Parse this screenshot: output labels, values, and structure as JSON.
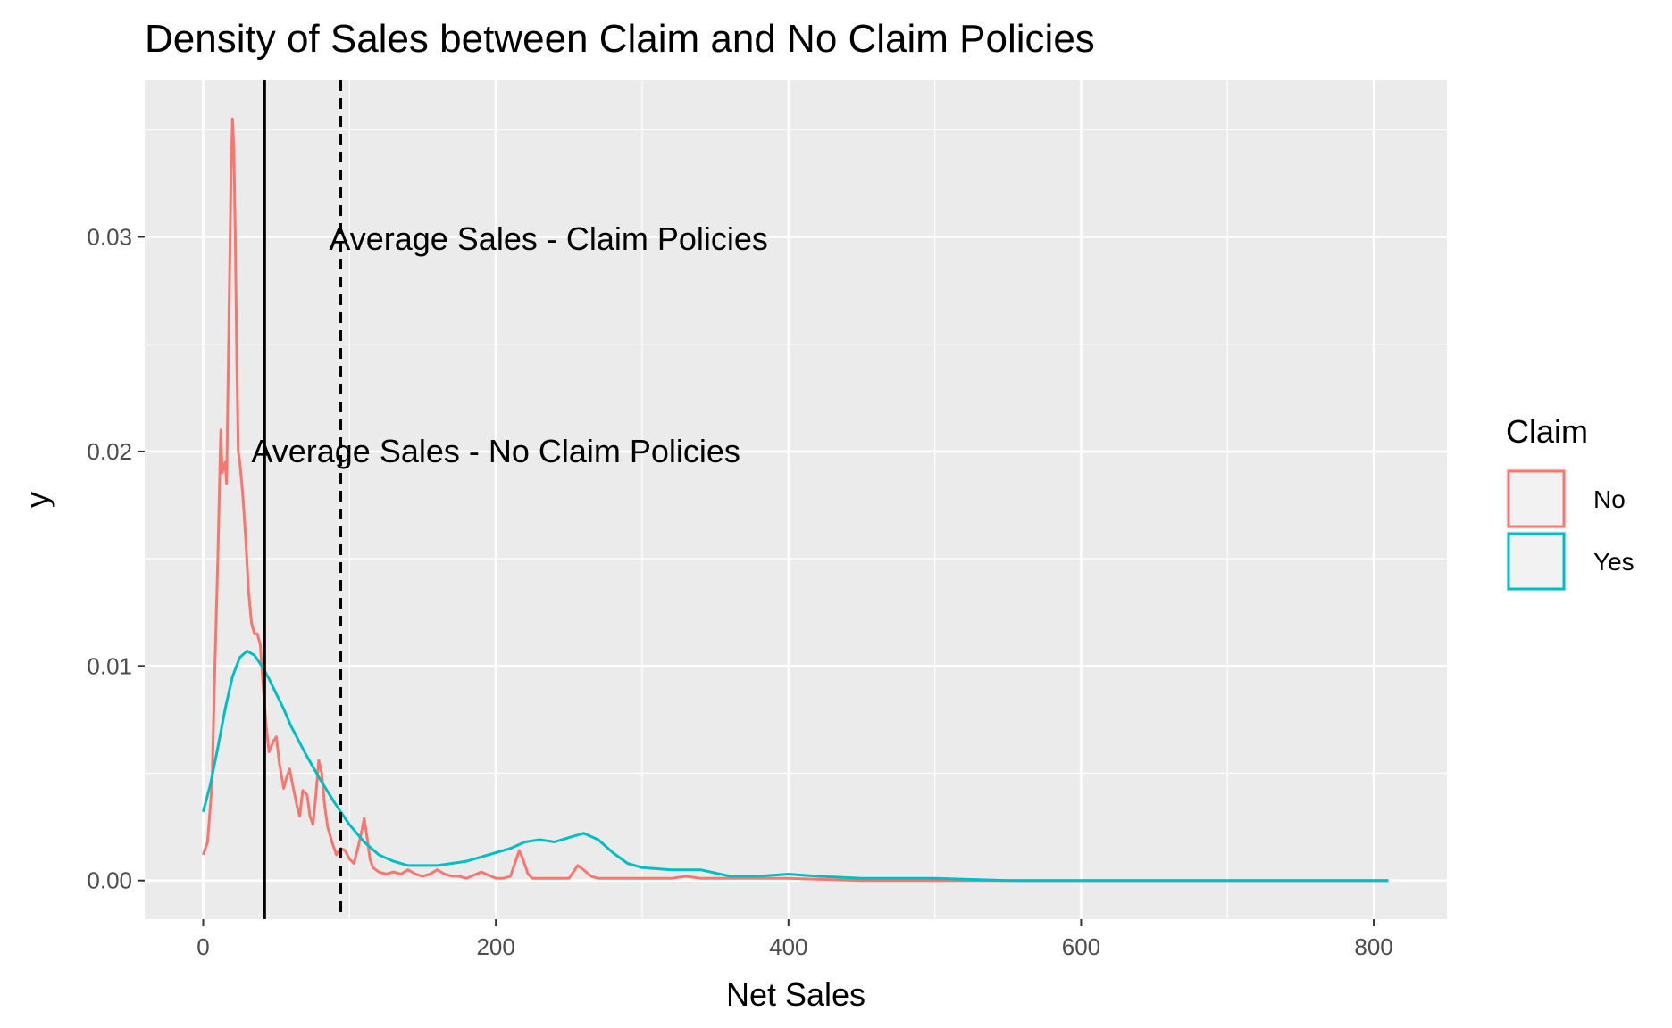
{
  "chart_data": {
    "type": "line",
    "title": "Density of Sales between Claim and No Claim Policies",
    "xlabel": "Net Sales",
    "ylabel": "y",
    "xlim": [
      -40,
      850
    ],
    "ylim": [
      -0.0018,
      0.0373
    ],
    "x_ticks": [
      0,
      200,
      400,
      600,
      800
    ],
    "x_tick_labels": [
      "0",
      "200",
      "400",
      "600",
      "800"
    ],
    "y_ticks": [
      0,
      0.01,
      0.02,
      0.03
    ],
    "y_tick_labels": [
      "0.00",
      "0.01",
      "0.02",
      "0.03"
    ],
    "grid": true,
    "legend": {
      "title": "Claim",
      "position": "right",
      "entries": [
        {
          "label": "No",
          "color": "#F8766D"
        },
        {
          "label": "Yes",
          "color": "#00BFC4"
        }
      ]
    },
    "vlines": [
      {
        "x": 42,
        "style": "solid",
        "color": "#000000"
      },
      {
        "x": 94,
        "style": "dashed",
        "color": "#000000"
      }
    ],
    "annotations": [
      {
        "text": "Average Sales - Claim Policies",
        "x": 236,
        "y": 0.0299
      },
      {
        "text": "Average Sales - No Claim Policies",
        "x": 200,
        "y": 0.02
      }
    ],
    "series": [
      {
        "name": "No",
        "color": "#F8766D",
        "x": [
          0,
          3,
          6,
          8,
          10,
          12,
          13,
          15,
          16,
          18,
          19,
          20,
          21,
          22,
          23,
          24,
          25,
          27,
          29,
          31,
          33,
          35,
          37,
          39,
          41,
          43,
          45,
          48,
          50,
          52,
          55,
          57,
          59,
          61,
          64,
          66,
          68,
          71,
          73,
          75,
          77,
          79,
          81,
          83,
          85,
          88,
          91,
          94,
          97,
          100,
          103,
          106,
          108,
          110,
          112,
          114,
          116,
          120,
          125,
          130,
          135,
          140,
          145,
          150,
          155,
          160,
          165,
          170,
          175,
          180,
          190,
          200,
          205,
          210,
          213,
          216,
          219,
          222,
          225,
          230,
          240,
          250,
          253,
          256,
          260,
          265,
          270,
          280,
          300,
          320,
          330,
          340,
          360,
          380,
          400,
          450,
          500,
          550,
          600,
          700,
          800,
          810
        ],
        "y": [
          0.0012,
          0.0018,
          0.0045,
          0.01,
          0.015,
          0.021,
          0.019,
          0.0195,
          0.0185,
          0.028,
          0.033,
          0.0355,
          0.034,
          0.0295,
          0.024,
          0.02,
          0.0195,
          0.018,
          0.016,
          0.0135,
          0.012,
          0.0115,
          0.0115,
          0.011,
          0.009,
          0.0072,
          0.006,
          0.0065,
          0.0067,
          0.0055,
          0.0043,
          0.0048,
          0.0052,
          0.0045,
          0.0035,
          0.003,
          0.0042,
          0.004,
          0.003,
          0.0026,
          0.004,
          0.0056,
          0.005,
          0.0035,
          0.0025,
          0.0018,
          0.0012,
          0.0015,
          0.0014,
          0.001,
          0.0008,
          0.0016,
          0.0022,
          0.0029,
          0.002,
          0.001,
          0.0006,
          0.0004,
          0.0003,
          0.0004,
          0.0003,
          0.0005,
          0.0003,
          0.0002,
          0.0003,
          0.0005,
          0.0003,
          0.0002,
          0.0002,
          0.0001,
          0.0004,
          0.0001,
          0.0001,
          0.0002,
          0.0008,
          0.0014,
          0.0009,
          0.0003,
          0.0001,
          0.0001,
          0.0001,
          0.0001,
          0.0004,
          0.0007,
          0.0005,
          0.0002,
          0.0001,
          0.0001,
          0.0001,
          0.0001,
          0.0002,
          0.0001,
          0.0001,
          0.0001,
          0.0001,
          0.0,
          0.0,
          0.0,
          0.0,
          0.0,
          0.0,
          0.0
        ]
      },
      {
        "name": "Yes",
        "color": "#00BFC4",
        "x": [
          0,
          5,
          10,
          15,
          20,
          25,
          30,
          35,
          40,
          45,
          50,
          55,
          60,
          70,
          80,
          90,
          100,
          110,
          120,
          130,
          140,
          150,
          160,
          170,
          180,
          190,
          200,
          210,
          220,
          230,
          240,
          250,
          260,
          270,
          280,
          290,
          300,
          320,
          340,
          360,
          380,
          400,
          420,
          450,
          500,
          550,
          600,
          700,
          800,
          810
        ],
        "y": [
          0.0032,
          0.0045,
          0.0062,
          0.008,
          0.0095,
          0.0104,
          0.0107,
          0.0105,
          0.01,
          0.0094,
          0.0087,
          0.008,
          0.0072,
          0.0059,
          0.0047,
          0.0036,
          0.0026,
          0.0018,
          0.0012,
          0.0009,
          0.0007,
          0.0007,
          0.0007,
          0.0008,
          0.0009,
          0.0011,
          0.0013,
          0.0015,
          0.0018,
          0.0019,
          0.0018,
          0.002,
          0.0022,
          0.0019,
          0.0013,
          0.0008,
          0.0006,
          0.0005,
          0.0005,
          0.0002,
          0.0002,
          0.0003,
          0.0002,
          0.0001,
          0.0001,
          0.0,
          0.0,
          0.0,
          0.0,
          0.0
        ]
      }
    ]
  }
}
